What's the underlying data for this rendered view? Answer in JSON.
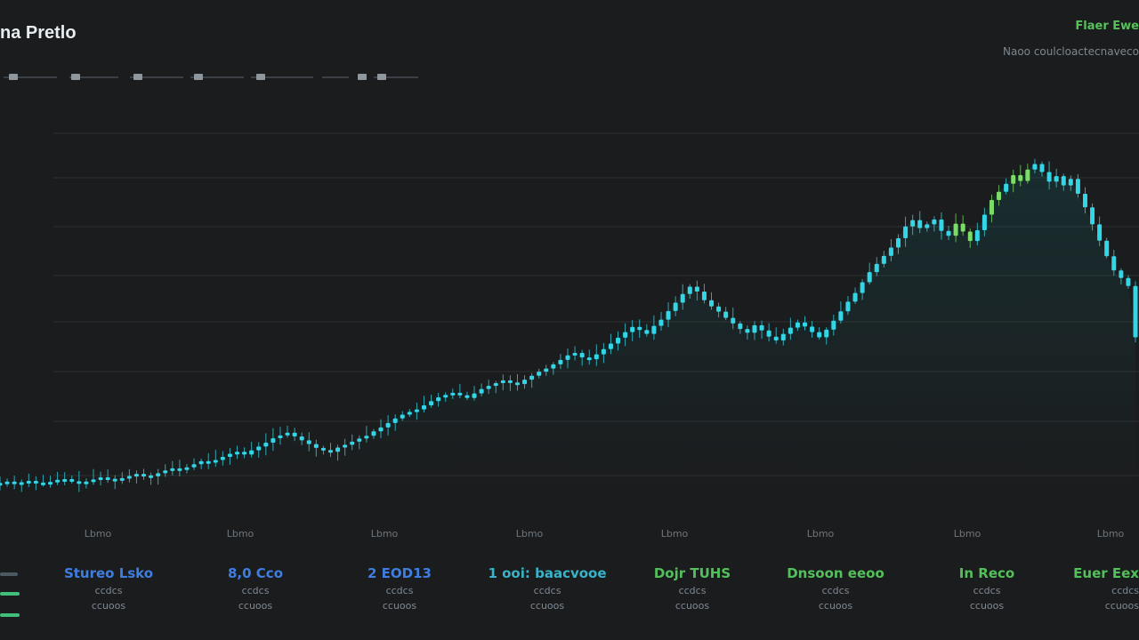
{
  "header": {
    "title": "na Pretlo",
    "top_right_label": "Flaer Ewe",
    "top_right_sub": "Naoo coulcloactecnaveco"
  },
  "colors": {
    "background": "#1b1c1d",
    "candle": "#33d6e6",
    "candle_green": "#7bdc6a",
    "grid": "#2c2f31",
    "blue_text": "#3f7ee0",
    "green_text": "#53c05c"
  },
  "chart_data": {
    "type": "candlestick",
    "x_tick_labels": [
      "Lbmo",
      "Lbmo",
      "Lbmo",
      "Lbmo",
      "Lbmo",
      "Lbmo",
      "Lbmo",
      "Lbmo"
    ],
    "ylim": [
      0,
      100
    ],
    "grid": true,
    "close": [
      3,
      3.4,
      2.8,
      3.2,
      3.6,
      3.1,
      2.7,
      3.3,
      3.9,
      4.1,
      3.5,
      2.9,
      3.4,
      4.0,
      4.6,
      4.2,
      3.8,
      4.4,
      5.0,
      5.6,
      5.2,
      4.9,
      5.8,
      6.6,
      7.2,
      6.8,
      7.5,
      8.4,
      9.3,
      8.9,
      9.6,
      10.5,
      11.4,
      12.0,
      11.2,
      12.4,
      13.5,
      14.6,
      15.9,
      16.7,
      17.5,
      16.4,
      15.3,
      14.2,
      13.1,
      12.5,
      12.0,
      13.2,
      14.0,
      14.9,
      15.8,
      16.6,
      17.9,
      19.0,
      20.3,
      21.6,
      22.7,
      23.5,
      24.2,
      25.4,
      26.6,
      27.7,
      28.4,
      29.0,
      28.3,
      27.5,
      28.8,
      30.1,
      31.0,
      31.8,
      32.6,
      32.0,
      31.5,
      32.8,
      33.9,
      35.1,
      36.0,
      37.2,
      38.5,
      39.8,
      40.5,
      39.2,
      38.7,
      40.1,
      41.6,
      43.2,
      44.9,
      46.5,
      48.0,
      47.1,
      46.0,
      48.3,
      50.1,
      52.6,
      55.0,
      57.5,
      59.6,
      58.2,
      55.7,
      53.9,
      52.4,
      50.6,
      49.0,
      47.4,
      46.3,
      48.5,
      47.0,
      45.2,
      44.1,
      46.0,
      47.8,
      49.3,
      48.1,
      46.5,
      45.0,
      47.2,
      49.8,
      52.5,
      55.3,
      57.8,
      60.9,
      63.8,
      66.2,
      68.5,
      70.9,
      73.6,
      77.0,
      78.8,
      76.5,
      77.6,
      79.0,
      75.7,
      74.3,
      77.8,
      75.5,
      72.8,
      75.9,
      80.4,
      84.6,
      87.0,
      89.3,
      91.8,
      90.1,
      93.4,
      95.0,
      92.7,
      89.9,
      91.5,
      88.8,
      90.7,
      86.4,
      82.5,
      77.6,
      72.9,
      68.4,
      64.3,
      62.1,
      59.8,
      45.0
    ]
  },
  "stats": [
    {
      "title": "Stureo Lsko",
      "v1": "ccdcs",
      "v2": "ccuoos",
      "color": "#3f7ee0"
    },
    {
      "title": "8,0 Cco",
      "v1": "ccdcs",
      "v2": "ccuoos",
      "color": "#3f7ee0"
    },
    {
      "title": "2 EOD13",
      "v1": "ccdcs",
      "v2": "ccuoos",
      "color": "#3f7ee0"
    },
    {
      "title": "1 ooi: baacvooe",
      "v1": "ccdcs",
      "v2": "ccuoos",
      "color": "#38b3c7"
    },
    {
      "title": "Dojr TUHS",
      "v1": "ccdcs",
      "v2": "ccuoos",
      "color": "#53c05c"
    },
    {
      "title": "Dnsoon eeoo",
      "v1": "ccdcs",
      "v2": "ccuoos",
      "color": "#53c05c"
    },
    {
      "title": "In Reco",
      "v1": "ccdcs",
      "v2": "ccuoos",
      "color": "#53c05c"
    },
    {
      "title": "Euer Eex",
      "v1": "ccdcs",
      "v2": "ccuoos",
      "color": "#53c05c"
    }
  ]
}
